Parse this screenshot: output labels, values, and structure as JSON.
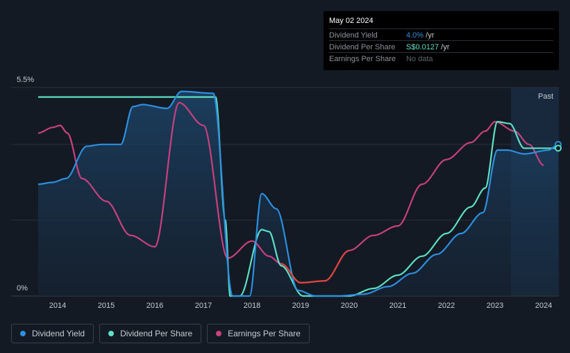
{
  "colors": {
    "dividend_yield": "#2c8fe0",
    "dividend_per_share": "#5de0c4",
    "earnings_per_share": "#c8407e",
    "eps_negative": "#e0453d",
    "grid": "#2a303a",
    "background": "#141a24"
  },
  "tooltip": {
    "date": "May 02 2024",
    "rows": [
      {
        "label": "Dividend Yield",
        "value": "4.0%",
        "unit": " /yr",
        "color": "#2c8fe0"
      },
      {
        "label": "Dividend Per Share",
        "value": "S$0.0127",
        "unit": " /yr",
        "color": "#5de0c4"
      },
      {
        "label": "Earnings Per Share",
        "value": "No data",
        "unit": "",
        "color": "#5f6671"
      }
    ]
  },
  "legend": {
    "items": [
      {
        "label": "Dividend Yield",
        "color": "#2c8fe0"
      },
      {
        "label": "Dividend Per Share",
        "color": "#5de0c4"
      },
      {
        "label": "Earnings Per Share",
        "color": "#c8407e"
      }
    ]
  },
  "chart_data": {
    "type": "line",
    "title": "",
    "y_top_label": "5.5%",
    "y_bottom_label": "0%",
    "ylim": [
      0,
      5.5
    ],
    "xlim": [
      2013.0,
      2024.32
    ],
    "x_ticks": [
      "2014",
      "2015",
      "2016",
      "2017",
      "2018",
      "2019",
      "2020",
      "2021",
      "2022",
      "2023",
      "2024"
    ],
    "past_label": "Past",
    "past_start": 2023.33,
    "series": [
      {
        "name": "Dividend Yield",
        "unit": "%",
        "x": [
          2013.6,
          2013.9,
          2014.17,
          2014.6,
          2014.9,
          2015.3,
          2015.55,
          2015.75,
          2016.25,
          2016.55,
          2017.2,
          2017.6,
          2017.95,
          2018.2,
          2018.5,
          2018.95,
          2019.3,
          2019.8,
          2020.3,
          2020.8,
          2021.3,
          2021.8,
          2022.3,
          2022.75,
          2023.05,
          2023.25,
          2023.6,
          2024.1,
          2024.3
        ],
        "values": [
          2.95,
          3.0,
          3.1,
          3.95,
          4.0,
          4.0,
          5.0,
          5.05,
          4.95,
          5.4,
          5.35,
          0.0,
          0.0,
          2.7,
          2.3,
          0.15,
          0.0,
          0.0,
          0.05,
          0.25,
          0.6,
          1.1,
          1.65,
          2.2,
          3.85,
          3.85,
          3.75,
          3.85,
          4.0
        ]
      },
      {
        "name": "Dividend Per Share",
        "unit": "scaled",
        "x": [
          2013.6,
          2014.5,
          2015.5,
          2016.5,
          2017.25,
          2017.45,
          2017.55,
          2017.75,
          2018.2,
          2018.35,
          2018.6,
          2019.05,
          2019.3,
          2020.0,
          2020.5,
          2021.0,
          2021.5,
          2022.0,
          2022.5,
          2022.8,
          2023.05,
          2023.3,
          2023.6,
          2024.0,
          2024.3
        ],
        "values": [
          5.25,
          5.25,
          5.25,
          5.25,
          5.25,
          2.0,
          0.0,
          0.0,
          1.75,
          1.7,
          0.8,
          0.0,
          0.0,
          0.0,
          0.2,
          0.55,
          1.05,
          1.65,
          2.35,
          2.85,
          4.6,
          4.55,
          3.9,
          3.9,
          3.9
        ]
      },
      {
        "name": "Earnings Per Share",
        "unit": "scaled",
        "x": [
          2013.6,
          2013.9,
          2014.05,
          2014.2,
          2014.5,
          2015.0,
          2015.5,
          2016.0,
          2016.5,
          2017.0,
          2017.5,
          2018.0,
          2018.35,
          2018.6,
          2019.0,
          2019.5,
          2020.0,
          2020.5,
          2021.0,
          2021.5,
          2022.0,
          2022.5,
          2022.8,
          2023.0,
          2023.4,
          2023.7,
          2024.0
        ],
        "values": [
          4.3,
          4.45,
          4.5,
          4.3,
          3.1,
          2.5,
          1.6,
          1.3,
          5.1,
          4.5,
          1.0,
          1.45,
          1.05,
          0.85,
          0.35,
          0.4,
          1.2,
          1.6,
          1.85,
          2.95,
          3.6,
          4.05,
          4.35,
          4.6,
          4.35,
          4.0,
          3.45
        ]
      }
    ]
  }
}
